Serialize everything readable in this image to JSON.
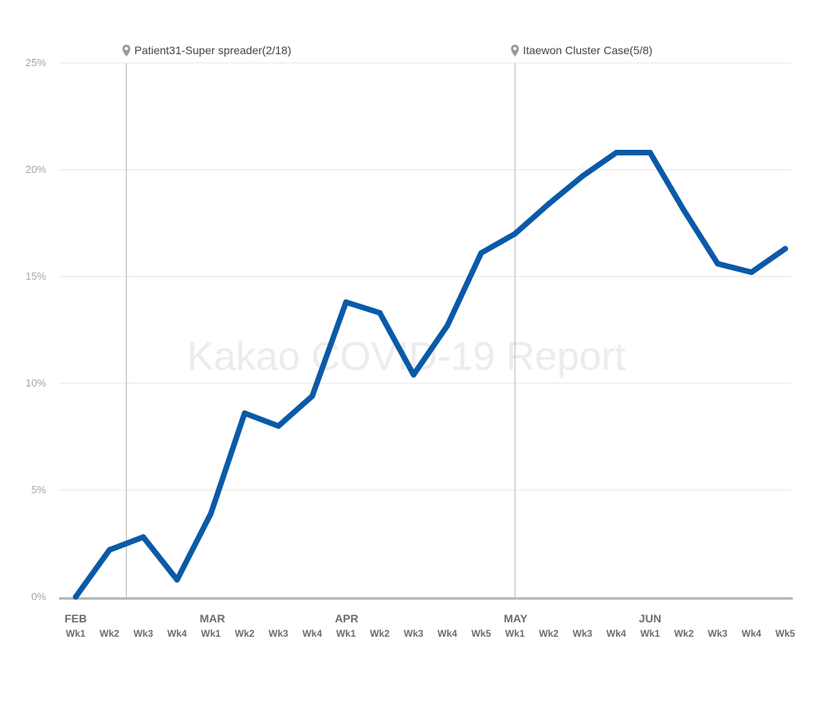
{
  "chart_data": {
    "type": "line",
    "watermark": "Kakao COVID-19 Report",
    "ylim": [
      0,
      25
    ],
    "yticks": [
      "0%",
      "5%",
      "10%",
      "15%",
      "20%",
      "25%"
    ],
    "grid": true,
    "months": [
      {
        "label": "FEB",
        "start": 0
      },
      {
        "label": "MAR",
        "start": 4
      },
      {
        "label": "APR",
        "start": 8
      },
      {
        "label": "MAY",
        "start": 13
      },
      {
        "label": "JUN",
        "start": 17
      }
    ],
    "categories": [
      "Wk1",
      "Wk2",
      "Wk3",
      "Wk4",
      "Wk1",
      "Wk2",
      "Wk3",
      "Wk4",
      "Wk1",
      "Wk2",
      "Wk3",
      "Wk4",
      "Wk5",
      "Wk1",
      "Wk2",
      "Wk3",
      "Wk4",
      "Wk1",
      "Wk2",
      "Wk3",
      "Wk4",
      "Wk5"
    ],
    "series": [
      {
        "color": "#0a5aa8",
        "values": [
          0.0,
          2.2,
          2.8,
          0.8,
          3.9,
          8.6,
          8.0,
          9.4,
          13.8,
          13.3,
          10.4,
          12.7,
          16.1,
          17.0,
          18.4,
          19.7,
          20.8,
          20.8,
          18.1,
          15.6,
          15.2,
          16.3
        ]
      }
    ],
    "annotations": [
      {
        "label": "Patient31-Super spreader(2/18)",
        "x": 1.5
      },
      {
        "label": "Itaewon Cluster Case(5/8)",
        "x": 13.0
      }
    ]
  }
}
